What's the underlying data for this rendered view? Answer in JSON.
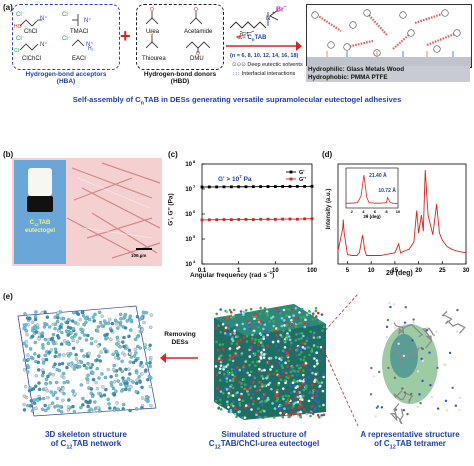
{
  "panels": {
    "a": "(a)",
    "b": "(b)",
    "c": "(c)",
    "d": "(d)",
    "e": "(e)"
  },
  "hba": {
    "molecules": [
      "ChCl",
      "TMACl",
      "ClChCl",
      "EACl"
    ],
    "title": "Hydrogen-bond acceptors",
    "abbr": "(HBA)"
  },
  "plus": "+",
  "hbd": {
    "molecules": [
      "Urea",
      "Acetamide",
      "Thiourea",
      "DMU"
    ],
    "title": "Hydrogen-bond donors",
    "abbr": "(HBD)"
  },
  "surfactant": {
    "name_prefix": "= C",
    "name_sub": "n",
    "name_suffix": "TAB",
    "chain_label": "n−1",
    "br": "Br",
    "n_values": "(n = 6, 8, 10, 12, 14, 16, 18)"
  },
  "legend": {
    "des": "Deep eutectic solvents",
    "interfacial": "Interfacial interactions"
  },
  "substrates": {
    "hydrophilic_label": "Hydrophilic:",
    "hydrophilic": "Glass  Metals  Wood",
    "hydrophobic_label": "Hydrophobic:",
    "hydrophobic": "PMMA  PTFE"
  },
  "main_title": {
    "pre": "Self-assembly of C",
    "sub": "n",
    "post": "TAB in DESs generating versatile supramolecular eutectogel adhesives"
  },
  "panel_b": {
    "vial_label": "C",
    "vial_sub": "12",
    "vial_label2": "TAB",
    "vial_label3": "eutectogel",
    "scale": "100 µm"
  },
  "panel_c": {
    "annotation": "G' > 10",
    "annotation_sup": "7",
    "annotation_unit": " Pa",
    "xlabel": "Angular frequency (rad s",
    "xlabel_sup": "−1",
    "xlabel_end": ")",
    "ylabel": "G', G'' (Pa)",
    "legend": [
      "G'",
      "G''"
    ],
    "xticks": [
      "0.1",
      "1",
      "10",
      "100"
    ],
    "yticks": [
      "10",
      "10",
      "10",
      "10",
      "10"
    ],
    "ytick_exp": [
      "4",
      "5",
      "6",
      "7",
      "8"
    ]
  },
  "panel_d": {
    "xlabel": "2θ (deg)",
    "ylabel": "Intensity (a.u.)",
    "xticks": [
      "5",
      "10",
      "15",
      "20",
      "25",
      "30"
    ],
    "inset_peak1": "21.40 Å",
    "inset_peak2": "10.72 Å",
    "inset_xlabel": "2θ (deg)",
    "inset_xticks": [
      "2",
      "4",
      "6",
      "8",
      "10"
    ]
  },
  "panel_e": {
    "arrow_label_1": "Removing",
    "arrow_label_2": "DESs",
    "cap1_line1": "3D skeleton structure",
    "cap1_pre": "of C",
    "cap1_sub": "12",
    "cap1_post": "TAB network",
    "cap2_line1": "Simulated structure of",
    "cap2_pre": "C",
    "cap2_sub": "12",
    "cap2_post": "TAB/ChCl-urea eutectogel",
    "cap3_line1": "A representative structure",
    "cap3_pre": "of C",
    "cap3_sub": "12",
    "cap3_post": "TAB tetramer"
  },
  "chart_data": [
    {
      "type": "line",
      "title": "",
      "xlabel": "Angular frequency (rad s−1)",
      "ylabel": "G', G'' (Pa)",
      "xscale": "log",
      "yscale": "log",
      "xlim": [
        0.1,
        100
      ],
      "ylim": [
        10000,
        100000000
      ],
      "x": [
        0.1,
        0.158,
        0.251,
        0.398,
        0.631,
        1,
        1.58,
        2.51,
        3.98,
        6.31,
        10,
        15.8,
        25.1,
        39.8,
        63.1,
        100
      ],
      "series": [
        {
          "name": "G'",
          "color": "#000000",
          "values": [
            12000000,
            12100000,
            12100000,
            12200000,
            12200000,
            12300000,
            12300000,
            12400000,
            12400000,
            12500000,
            12500000,
            12600000,
            12600000,
            12700000,
            12700000,
            12800000
          ]
        },
        {
          "name": "G''",
          "color": "#e02020",
          "values": [
            580000,
            585000,
            590000,
            600000,
            595000,
            605000,
            610000,
            600000,
            615000,
            620000,
            610000,
            625000,
            630000,
            620000,
            640000,
            650000
          ]
        }
      ],
      "legend_position": "top-right"
    },
    {
      "type": "line",
      "title": "",
      "xlabel": "2θ (deg)",
      "ylabel": "Intensity (a.u.)",
      "xlim": [
        3,
        30
      ],
      "x": [
        3,
        4,
        4.1,
        4.3,
        5,
        6,
        7,
        7.5,
        8.2,
        8.6,
        9,
        10,
        11,
        12,
        13,
        14,
        15,
        15.8,
        16.2,
        17,
        18,
        19,
        19.6,
        20,
        20.6,
        21,
        21.4,
        22,
        23,
        23.8,
        24.4,
        25,
        26,
        27,
        28,
        29,
        30
      ],
      "series": [
        {
          "name": "",
          "color": "#e02020",
          "values": [
            0.1,
            0.35,
            0.45,
            0.3,
            0.06,
            0.05,
            0.05,
            0.08,
            0.28,
            0.12,
            0.05,
            0.05,
            0.05,
            0.05,
            0.06,
            0.07,
            0.08,
            0.18,
            0.08,
            0.1,
            0.12,
            0.2,
            0.55,
            0.3,
            0.5,
            0.32,
            1.0,
            0.5,
            0.28,
            0.62,
            0.3,
            0.22,
            0.15,
            0.12,
            0.1,
            0.09,
            0.08
          ]
        }
      ],
      "inset": {
        "xlim": [
          1,
          10
        ],
        "x": [
          1,
          2,
          3,
          3.6,
          4.1,
          4.6,
          5,
          6,
          7,
          8,
          8.2,
          8.6,
          9,
          10
        ],
        "values": [
          0.06,
          0.06,
          0.08,
          0.3,
          1.0,
          0.25,
          0.08,
          0.06,
          0.06,
          0.08,
          0.25,
          0.1,
          0.06,
          0.05
        ],
        "annotations": [
          "21.40 Å",
          "10.72 Å"
        ]
      }
    }
  ]
}
